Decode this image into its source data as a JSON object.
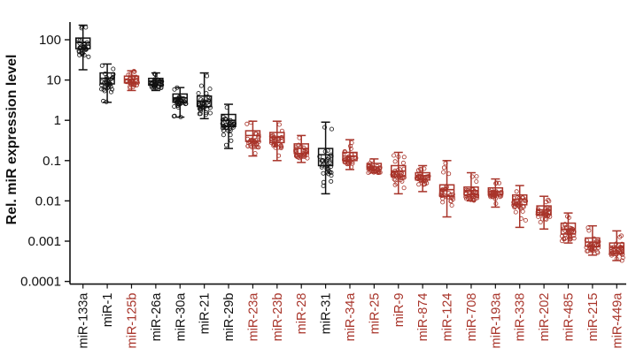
{
  "chart_data": {
    "type": "box",
    "ylabel": "Rel. miR expression level",
    "yscale": "log",
    "ylim": [
      0.0001,
      300
    ],
    "yticks": [
      {
        "value": 100,
        "label": "100"
      },
      {
        "value": 10,
        "label": "10"
      },
      {
        "value": 1,
        "label": "1"
      },
      {
        "value": 0.1,
        "label": "0.1"
      },
      {
        "value": 0.01,
        "label": "0.01"
      },
      {
        "value": 0.001,
        "label": "0.001"
      },
      {
        "value": 0.0001,
        "label": "0.0001"
      }
    ],
    "grid": false,
    "colors": {
      "black": "#111111",
      "red": "#a8342a"
    },
    "boxes": [
      {
        "label": "miR-133a",
        "color": "black",
        "min": 18,
        "q1": 60,
        "median": 85,
        "q3": 110,
        "max": 230
      },
      {
        "label": "miR-1",
        "color": "black",
        "min": 2.8,
        "q1": 8,
        "median": 11,
        "q3": 15,
        "max": 25
      },
      {
        "label": "miR-125b",
        "color": "red",
        "min": 5.5,
        "q1": 8.5,
        "median": 10.5,
        "q3": 12.5,
        "max": 17
      },
      {
        "label": "miR-26a",
        "color": "black",
        "min": 5.5,
        "q1": 7.5,
        "median": 9.5,
        "q3": 11,
        "max": 15
      },
      {
        "label": "miR-30a",
        "color": "black",
        "min": 1.2,
        "q1": 2.8,
        "median": 3.6,
        "q3": 4.5,
        "max": 6.5
      },
      {
        "label": "miR-21",
        "color": "black",
        "min": 1.1,
        "q1": 2.2,
        "median": 3,
        "q3": 4,
        "max": 15
      },
      {
        "label": "miR-29b",
        "color": "black",
        "min": 0.2,
        "q1": 0.7,
        "median": 1,
        "q3": 1.4,
        "max": 2.5
      },
      {
        "label": "miR-23a",
        "color": "red",
        "min": 0.13,
        "q1": 0.3,
        "median": 0.42,
        "q3": 0.55,
        "max": 0.95
      },
      {
        "label": "miR-23b",
        "color": "red",
        "min": 0.1,
        "q1": 0.28,
        "median": 0.38,
        "q3": 0.5,
        "max": 0.95
      },
      {
        "label": "miR-28",
        "color": "red",
        "min": 0.09,
        "q1": 0.15,
        "median": 0.2,
        "q3": 0.26,
        "max": 0.42
      },
      {
        "label": "miR-31",
        "color": "black",
        "min": 0.015,
        "q1": 0.075,
        "median": 0.14,
        "q3": 0.2,
        "max": 0.9
      },
      {
        "label": "miR-34a",
        "color": "red",
        "min": 0.06,
        "q1": 0.1,
        "median": 0.13,
        "q3": 0.16,
        "max": 0.33
      },
      {
        "label": "miR-25",
        "color": "red",
        "min": 0.05,
        "q1": 0.06,
        "median": 0.07,
        "q3": 0.085,
        "max": 0.11
      },
      {
        "label": "miR-9",
        "color": "red",
        "min": 0.015,
        "q1": 0.04,
        "median": 0.055,
        "q3": 0.075,
        "max": 0.16
      },
      {
        "label": "miR-874",
        "color": "red",
        "min": 0.017,
        "q1": 0.033,
        "median": 0.042,
        "q3": 0.05,
        "max": 0.075
      },
      {
        "label": "miR-124",
        "color": "red",
        "min": 0.004,
        "q1": 0.013,
        "median": 0.019,
        "q3": 0.025,
        "max": 0.1
      },
      {
        "label": "miR-708",
        "color": "red",
        "min": 0.01,
        "q1": 0.014,
        "median": 0.018,
        "q3": 0.022,
        "max": 0.05
      },
      {
        "label": "miR-193a",
        "color": "red",
        "min": 0.007,
        "q1": 0.014,
        "median": 0.017,
        "q3": 0.021,
        "max": 0.035
      },
      {
        "label": "miR-338",
        "color": "red",
        "min": 0.0022,
        "q1": 0.008,
        "median": 0.011,
        "q3": 0.014,
        "max": 0.024
      },
      {
        "label": "miR-202",
        "color": "red",
        "min": 0.002,
        "q1": 0.0045,
        "median": 0.006,
        "q3": 0.0075,
        "max": 0.013
      },
      {
        "label": "miR-485",
        "color": "red",
        "min": 0.0009,
        "q1": 0.0015,
        "median": 0.002,
        "q3": 0.0028,
        "max": 0.005
      },
      {
        "label": "miR-215",
        "color": "red",
        "min": 0.00045,
        "q1": 0.00075,
        "median": 0.00095,
        "q3": 0.0012,
        "max": 0.0024
      },
      {
        "label": "miR-449a",
        "color": "red",
        "min": 0.00033,
        "q1": 0.0005,
        "median": 0.0007,
        "q3": 0.0009,
        "max": 0.0018
      }
    ]
  }
}
